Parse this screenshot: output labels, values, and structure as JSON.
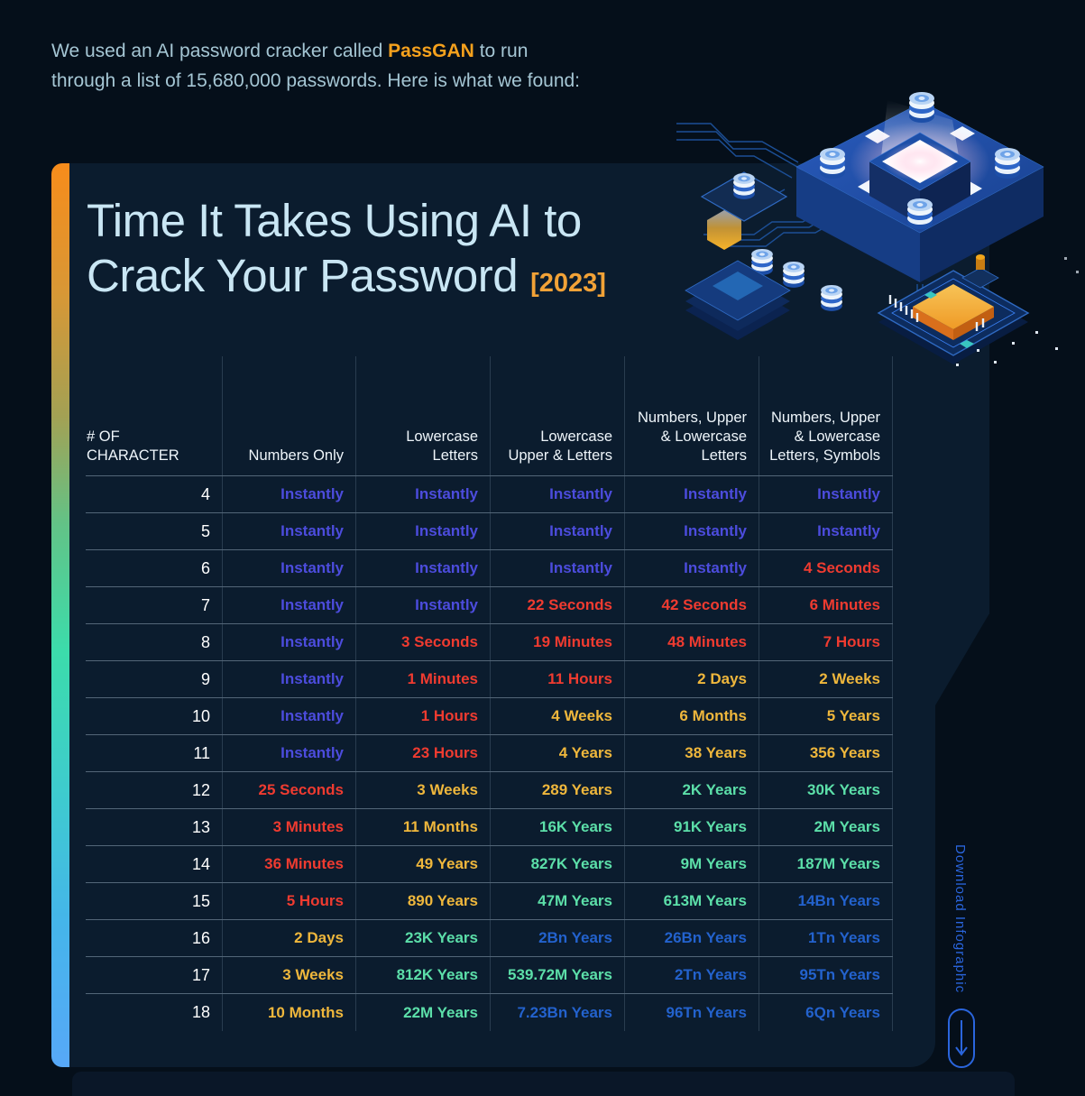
{
  "intro": {
    "line1_before": "We used an AI password cracker called ",
    "line1_bold": "PassGAN",
    "line1_after": " to run",
    "line2": "through a list of 15,680,000 passwords. Here is what we found:"
  },
  "panel": {
    "title_line1": "Time It Takes Using AI to",
    "title_line2": "Crack Your Password",
    "year_tag": "[2023]"
  },
  "download": {
    "label": "Download Infographic"
  },
  "colors": {
    "instant": "#4c4cdd",
    "red": "#ef3b30",
    "yellow": "#efb73c",
    "green": "#5cdfa9",
    "blue": "#2362cd",
    "accent_orange": "#f5a11d",
    "panel": "#0b1c2e",
    "background": "#050f1a"
  },
  "chart_data": {
    "type": "table",
    "title": "Time It Takes Using AI to Crack Your Password [2023]",
    "columns": [
      "# OF\nCHARACTER",
      "Numbers Only",
      "Lowercase Letters",
      "Lowercase Upper & Letters",
      "Numbers, Upper & Lowercase Letters",
      "Numbers, Upper & Lowercase Letters, Symbols"
    ],
    "rows": [
      {
        "chars": "4",
        "values": [
          "Instantly",
          "Instantly",
          "Instantly",
          "Instantly",
          "Instantly"
        ],
        "tones": [
          "instant",
          "instant",
          "instant",
          "instant",
          "instant"
        ]
      },
      {
        "chars": "5",
        "values": [
          "Instantly",
          "Instantly",
          "Instantly",
          "Instantly",
          "Instantly"
        ],
        "tones": [
          "instant",
          "instant",
          "instant",
          "instant",
          "instant"
        ]
      },
      {
        "chars": "6",
        "values": [
          "Instantly",
          "Instantly",
          "Instantly",
          "Instantly",
          "4 Seconds"
        ],
        "tones": [
          "instant",
          "instant",
          "instant",
          "instant",
          "red"
        ]
      },
      {
        "chars": "7",
        "values": [
          "Instantly",
          "Instantly",
          "22 Seconds",
          "42 Seconds",
          "6 Minutes"
        ],
        "tones": [
          "instant",
          "instant",
          "red",
          "red",
          "red"
        ]
      },
      {
        "chars": "8",
        "values": [
          "Instantly",
          "3 Seconds",
          "19 Minutes",
          "48 Minutes",
          "7 Hours"
        ],
        "tones": [
          "instant",
          "red",
          "red",
          "red",
          "red"
        ]
      },
      {
        "chars": "9",
        "values": [
          "Instantly",
          "1 Minutes",
          "11 Hours",
          "2 Days",
          "2 Weeks"
        ],
        "tones": [
          "instant",
          "red",
          "red",
          "yellow",
          "yellow"
        ]
      },
      {
        "chars": "10",
        "values": [
          "Instantly",
          "1 Hours",
          "4 Weeks",
          "6 Months",
          "5 Years"
        ],
        "tones": [
          "instant",
          "red",
          "yellow",
          "yellow",
          "yellow"
        ]
      },
      {
        "chars": "11",
        "values": [
          "Instantly",
          "23 Hours",
          "4 Years",
          "38 Years",
          "356 Years"
        ],
        "tones": [
          "instant",
          "red",
          "yellow",
          "yellow",
          "yellow"
        ]
      },
      {
        "chars": "12",
        "values": [
          "25 Seconds",
          "3 Weeks",
          "289 Years",
          "2K Years",
          "30K Years"
        ],
        "tones": [
          "red",
          "yellow",
          "yellow",
          "green",
          "green"
        ]
      },
      {
        "chars": "13",
        "values": [
          "3 Minutes",
          "11 Months",
          "16K Years",
          "91K Years",
          "2M Years"
        ],
        "tones": [
          "red",
          "yellow",
          "green",
          "green",
          "green"
        ]
      },
      {
        "chars": "14",
        "values": [
          "36 Minutes",
          "49 Years",
          "827K Years",
          "9M Years",
          "187M Years"
        ],
        "tones": [
          "red",
          "yellow",
          "green",
          "green",
          "green"
        ]
      },
      {
        "chars": "15",
        "values": [
          "5 Hours",
          "890 Years",
          "47M Years",
          "613M Years",
          "14Bn Years"
        ],
        "tones": [
          "red",
          "yellow",
          "green",
          "green",
          "blue"
        ]
      },
      {
        "chars": "16",
        "values": [
          "2 Days",
          "23K Years",
          "2Bn Years",
          "26Bn Years",
          "1Tn Years"
        ],
        "tones": [
          "yellow",
          "green",
          "blue",
          "blue",
          "blue"
        ]
      },
      {
        "chars": "17",
        "values": [
          "3 Weeks",
          "812K Years",
          "539.72M Years",
          "2Tn Years",
          "95Tn Years"
        ],
        "tones": [
          "yellow",
          "green",
          "green",
          "blue",
          "blue"
        ]
      },
      {
        "chars": "18",
        "values": [
          "10 Months",
          "22M Years",
          "7.23Bn Years",
          "96Tn Years",
          "6Qn Years"
        ],
        "tones": [
          "yellow",
          "green",
          "blue",
          "blue",
          "blue"
        ]
      }
    ]
  }
}
